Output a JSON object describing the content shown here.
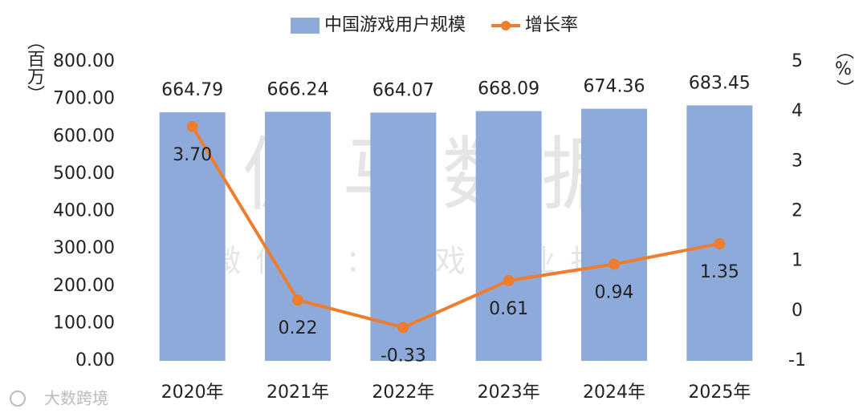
{
  "chart_data": {
    "type": "bar",
    "categories": [
      "2020年",
      "2021年",
      "2022年",
      "2023年",
      "2024年",
      "2025年"
    ],
    "series": [
      {
        "name": "中国游戏用户规模",
        "type": "bar",
        "color": "#8eaadb",
        "axis": "y",
        "values": [
          664.79,
          666.24,
          664.07,
          668.09,
          674.36,
          683.45
        ]
      },
      {
        "name": "增长率",
        "type": "line",
        "color": "#ed7d31",
        "axis": "y2",
        "values": [
          3.7,
          0.22,
          -0.33,
          0.61,
          0.94,
          1.35
        ],
        "value_labels": [
          "3.70",
          "0.22",
          "-0.33",
          "0.61",
          "0.94",
          "1.35"
        ]
      }
    ],
    "y_label": "（百万）",
    "y2_label": "（%）",
    "ylim": [
      0,
      800
    ],
    "yticks": [
      {
        "value": 0,
        "label": "0.00"
      },
      {
        "value": 100,
        "label": "100.00"
      },
      {
        "value": 200,
        "label": "200.00"
      },
      {
        "value": 300,
        "label": "300.00"
      },
      {
        "value": 400,
        "label": "400.00"
      },
      {
        "value": 500,
        "label": "500.00"
      },
      {
        "value": 600,
        "label": "600.00"
      },
      {
        "value": 700,
        "label": "700.00"
      },
      {
        "value": 800,
        "label": "800.00"
      }
    ],
    "y2lim": [
      -1,
      5
    ],
    "y2ticks": [
      -1,
      0,
      1,
      2,
      3,
      4,
      5
    ],
    "legend": "top"
  },
  "watermarks": {
    "main": "伽马数据",
    "sub": "微信号：游戏产业报告",
    "corner": "大数跨境"
  }
}
